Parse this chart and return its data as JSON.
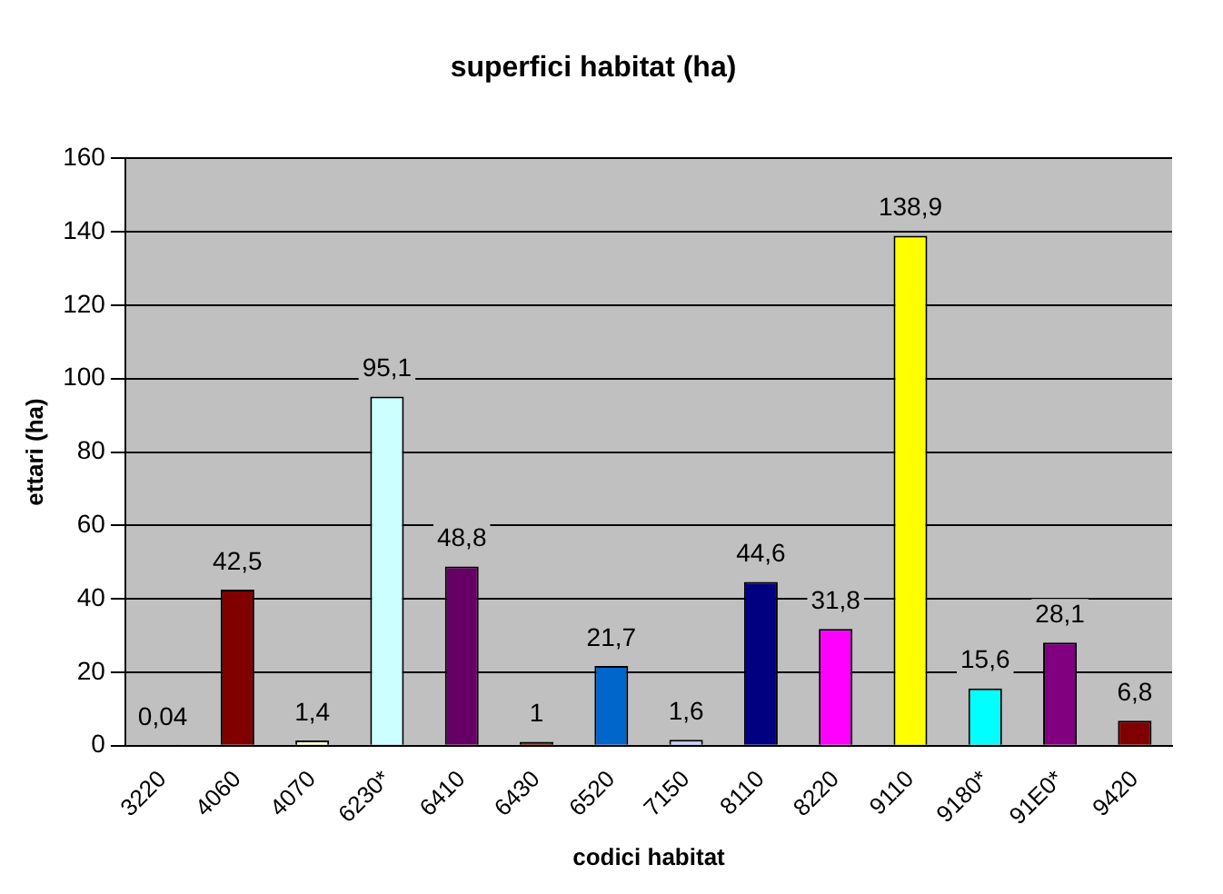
{
  "chart_data": {
    "type": "bar",
    "title": "superfici habitat (ha)",
    "xlabel": "codici habitat",
    "ylabel": "ettari (ha)",
    "categories": [
      "3220",
      "4060",
      "4070",
      "6230*",
      "6410",
      "6430",
      "6520",
      "7150",
      "8110",
      "8220",
      "9110",
      "9180*",
      "91E0*",
      "9420"
    ],
    "values": [
      0.04,
      42.5,
      1.4,
      95.1,
      48.8,
      1,
      21.7,
      1.6,
      44.6,
      31.8,
      138.9,
      15.6,
      28.1,
      6.8
    ],
    "value_labels": [
      "0,04",
      "42,5",
      "1,4",
      "95,1",
      "48,8",
      "1",
      "21,7",
      "1,6",
      "44,6",
      "31,8",
      "138,9",
      "15,6",
      "28,1",
      "6,8"
    ],
    "colors": [
      "#9999ff",
      "#800000",
      "#ffffcc",
      "#ccffff",
      "#660066",
      "#800000",
      "#0066cc",
      "#ccccff",
      "#000080",
      "#ff00ff",
      "#ffff00",
      "#00ffff",
      "#800080",
      "#800000"
    ],
    "ylim": [
      0,
      160
    ],
    "yticks": [
      0,
      20,
      40,
      60,
      80,
      100,
      120,
      140,
      160
    ],
    "grid": "y",
    "legend": false
  }
}
